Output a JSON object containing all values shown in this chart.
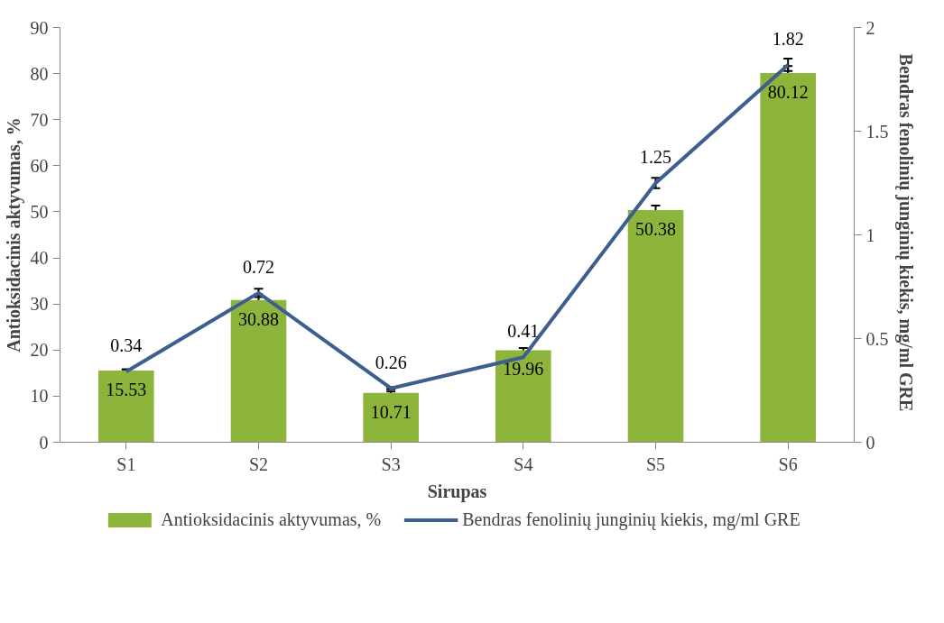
{
  "chart_data": {
    "type": "bar",
    "xlabel": "Sirupas",
    "ylabel": "Antioksidacinis aktyvumas, %",
    "y2label": "Bendras fenolinių junginių kiekis, mg/ml  GRE",
    "categories": [
      "S1",
      "S2",
      "S3",
      "S4",
      "S5",
      "S6"
    ],
    "series": [
      {
        "name": "Antioksidacinis aktyvumas, %",
        "color": "#8db53c",
        "values": [
          15.53,
          30.88,
          10.71,
          19.96,
          50.38,
          80.12
        ],
        "errors": [
          0.3,
          1.2,
          0.3,
          0.5,
          1.0,
          1.5
        ]
      },
      {
        "name": "Bendras fenolinių junginių kiekis, mg/ml GRE",
        "type": "line",
        "axis": "y2",
        "color": "#3c5f8f",
        "values": [
          0.34,
          0.72,
          0.26,
          0.41,
          1.25,
          1.82
        ],
        "errors": [
          0.005,
          0.02,
          0.005,
          0.01,
          0.025,
          0.03
        ]
      }
    ],
    "ylim": [
      0,
      90
    ],
    "yticks": [
      0,
      10,
      20,
      30,
      40,
      50,
      60,
      70,
      80,
      90
    ],
    "y2lim": [
      0,
      2
    ],
    "y2ticks": [
      0,
      0.5,
      1,
      1.5,
      2
    ],
    "data_labels": true,
    "grid": false,
    "legend": "bottom",
    "marker": "none"
  }
}
